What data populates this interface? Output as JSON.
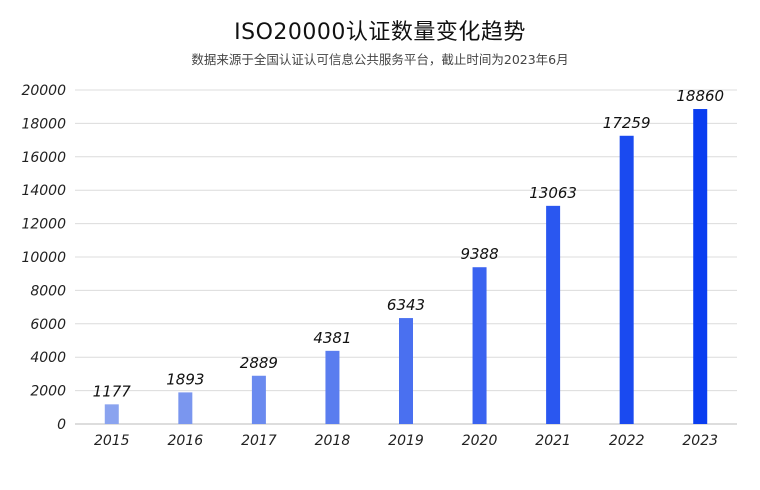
{
  "title": "ISO20000认证数量变化趋势",
  "subtitle": "数据来源于全国认证认可信息公共服务平台，截止时间为2023年6月",
  "chart_data": {
    "type": "bar",
    "title": "ISO20000认证数量变化趋势",
    "subtitle": "数据来源于全国认证认可信息公共服务平台，截止时间为2023年6月",
    "xlabel": "",
    "ylabel": "",
    "categories": [
      "2015",
      "2016",
      "2017",
      "2018",
      "2019",
      "2020",
      "2021",
      "2022",
      "2023"
    ],
    "values": [
      1177,
      1893,
      2889,
      4381,
      6343,
      9388,
      13063,
      17259,
      18860
    ],
    "ylim": [
      0,
      20000
    ],
    "yticks": [
      0,
      2000,
      4000,
      6000,
      8000,
      10000,
      12000,
      14000,
      16000,
      18000,
      20000
    ],
    "grid": true,
    "legend": "none",
    "colors": {
      "bar_light": "#8aa3ef",
      "bar_dark": "#0a3df0",
      "grid": "#dcdcdc",
      "axis": "#bbbbbb"
    }
  }
}
